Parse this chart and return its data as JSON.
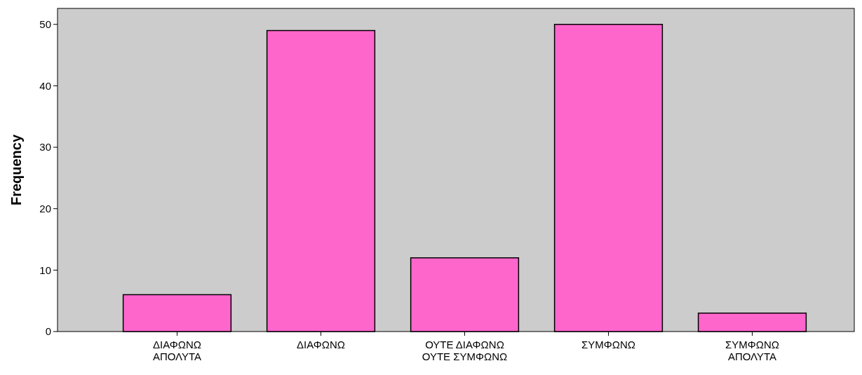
{
  "chart_data": {
    "type": "bar",
    "ylabel": "Frequency",
    "categories": [
      "ΔΙΑΦΩΝΩ\nΑΠΟΛΥΤΑ",
      "ΔΙΑΦΩΝΩ",
      "ΟΥΤΕ ΔΙΑΦΩΝΩ\nΟΥΤΕ ΣΥΜΦΩΝΩ",
      "ΣΥΜΦΩΝΩ",
      "ΣΥΜΦΩΝΩ\nΑΠΟΛΥΤΑ"
    ],
    "values": [
      6,
      49,
      12,
      50,
      3
    ],
    "color": "#ff66cc",
    "ylim": [
      0,
      52.6
    ],
    "yticks": [
      0,
      10,
      20,
      30,
      40,
      50
    ],
    "grid": false
  }
}
